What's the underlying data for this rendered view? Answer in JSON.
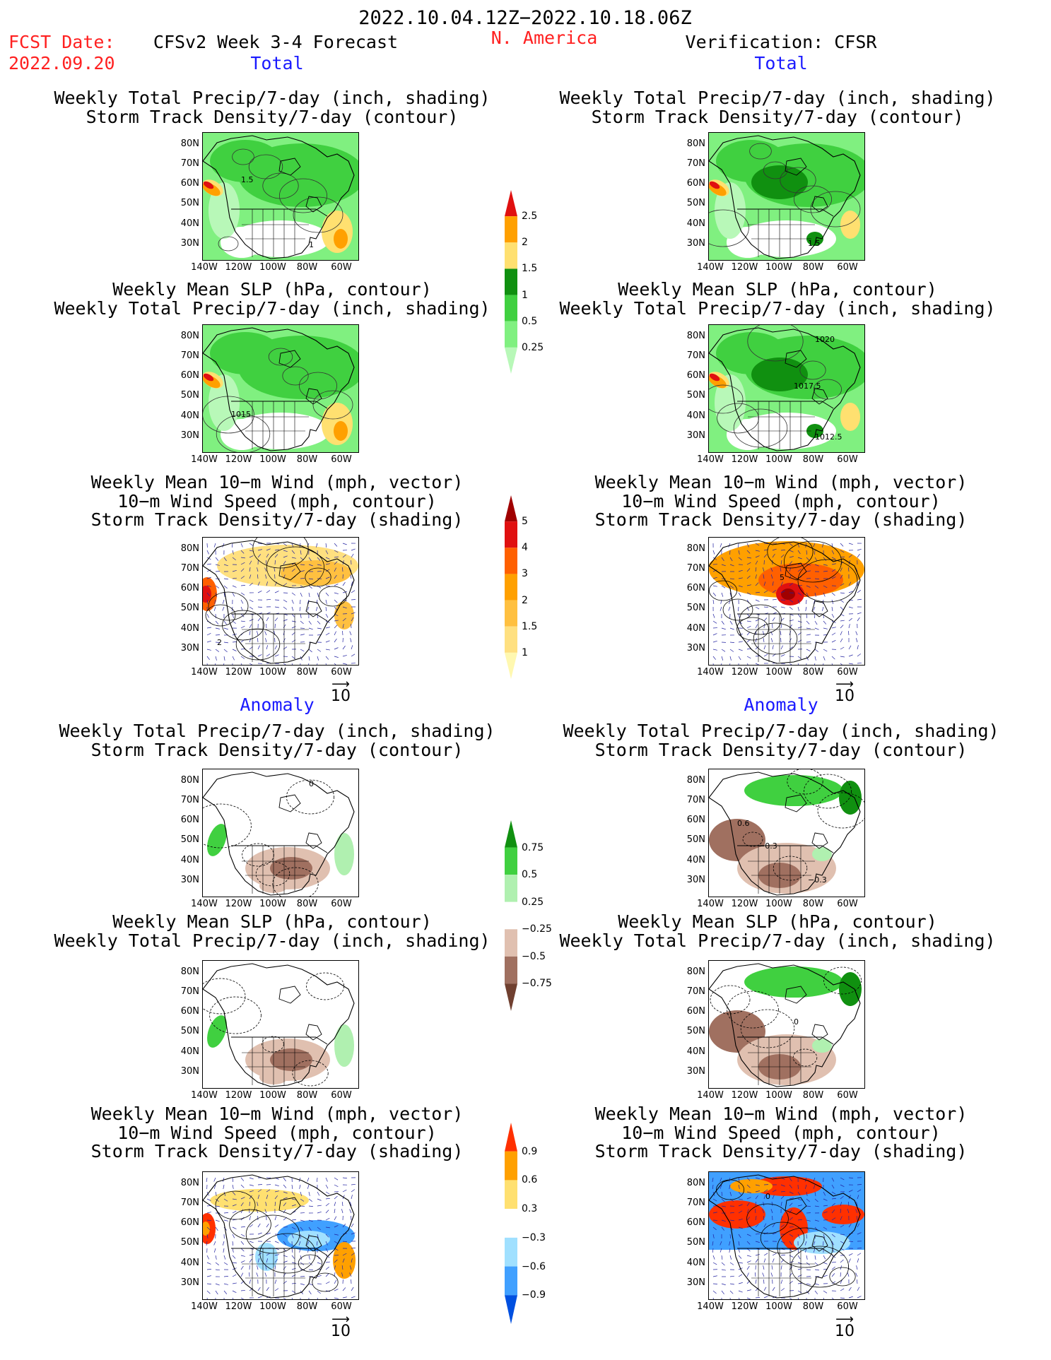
{
  "header": {
    "period": "2022.10.04.12Z−2022.10.18.06Z",
    "fcst_label": "FCST Date:",
    "fcst_date": "2022.09.20",
    "left_title": "CFSv2 Week 3-4 Forecast",
    "region": "N. America",
    "right_title": "Verification: CFSR"
  },
  "sections": {
    "total": "Total",
    "anomaly": "Anomaly"
  },
  "panel_titles": {
    "precip_storm": [
      "Weekly Total Precip/7-day (inch, shading)",
      "Storm Track Density/7-day (contour)"
    ],
    "slp_precip": [
      "Weekly Mean SLP (hPa, contour)",
      "Weekly Total Precip/7-day (inch, shading)"
    ],
    "wind_storm": [
      "Weekly Mean 10−m Wind (mph, vector)",
      "10−m Wind Speed (mph, contour)",
      "Storm Track Density/7-day (shading)"
    ]
  },
  "axes": {
    "lat_ticks": [
      "80N",
      "70N",
      "60N",
      "50N",
      "40N",
      "30N"
    ],
    "lon_ticks": [
      "140W",
      "120W",
      "100W",
      "80W",
      "60W"
    ]
  },
  "vector_ref": "10",
  "contour_labels": {
    "fcst_precip_storm": [
      "1.5",
      "1"
    ],
    "obs_precip_storm": [
      "1.5"
    ],
    "fcst_slp": [
      "1015"
    ],
    "obs_slp": [
      "1012.5",
      "1020",
      "1017.5"
    ],
    "fcst_wind": [
      "2"
    ],
    "obs_wind": [
      "5"
    ],
    "anom_fcst_precip": [
      "0"
    ],
    "anom_obs_precip": [
      "0.6",
      "−0.3",
      "−0.3"
    ],
    "anom_obs_slp": [
      "0"
    ],
    "anom_obs_wind": [
      "0"
    ]
  },
  "colorbars": {
    "precip_total": {
      "labels": [
        "2.5",
        "2",
        "1.5",
        "1",
        "0.5",
        "0.25"
      ],
      "colors": [
        "#e01010",
        "#ffa000",
        "#ffe070",
        "#109010",
        "#40d040",
        "#80f080",
        "#b8f8b8"
      ]
    },
    "storm_total": {
      "labels": [
        "5",
        "4",
        "3",
        "2",
        "1.5",
        "1"
      ],
      "colors": [
        "#a00000",
        "#e01010",
        "#ff6000",
        "#ffa000",
        "#ffc040",
        "#ffe080",
        "#fff8b0"
      ]
    },
    "precip_anom": {
      "labels": [
        "0.75",
        "0.5",
        "0.25",
        "−0.25",
        "−0.5",
        "−0.75"
      ],
      "colors": [
        "#109010",
        "#40d040",
        "#b0f0b0",
        "#ffffff",
        "#e0c0b0",
        "#a07060",
        "#704030"
      ]
    },
    "storm_anom": {
      "labels": [
        "0.9",
        "0.6",
        "0.3",
        "−0.3",
        "−0.6",
        "−0.9"
      ],
      "colors": [
        "#ff3000",
        "#ffa000",
        "#ffe070",
        "#ffffff",
        "#a0e0ff",
        "#40a0ff",
        "#0050e0"
      ]
    }
  }
}
